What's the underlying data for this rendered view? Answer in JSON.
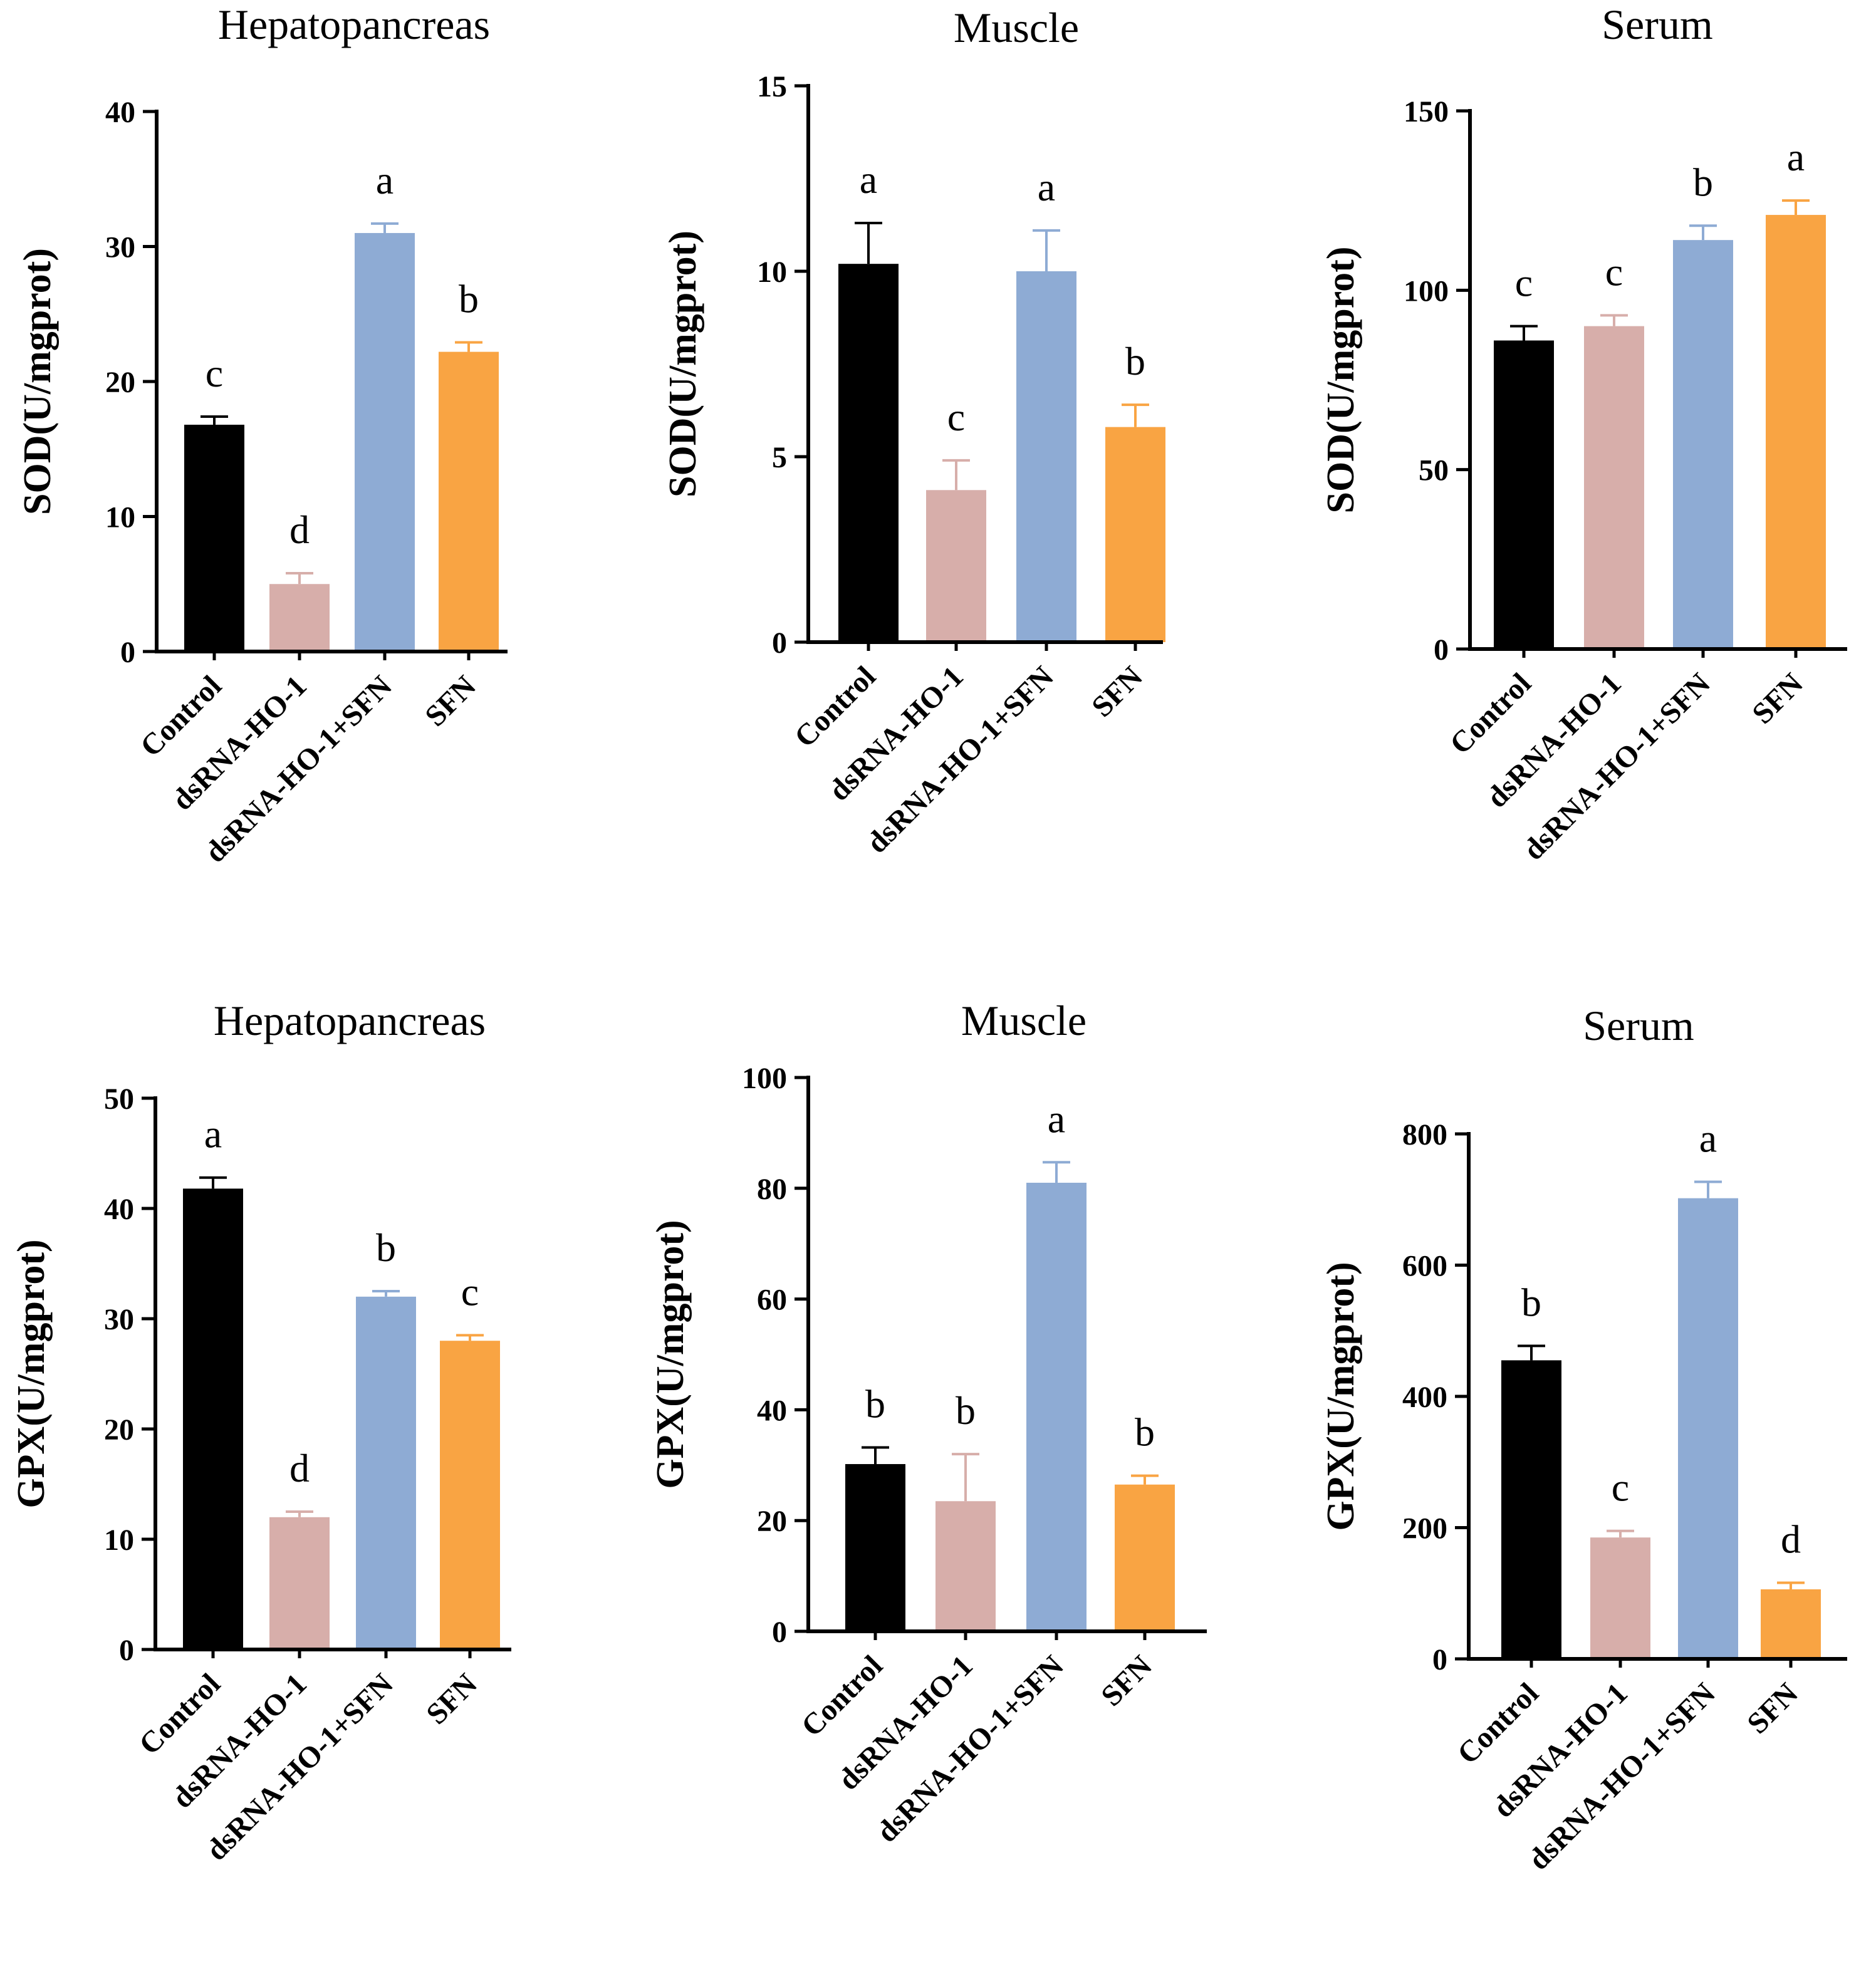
{
  "colors": {
    "Control": "#000000",
    "dsRNA-HO-1": "#d7aeaa",
    "dsRNA-HO-1+SFN": "#8eabd4",
    "SFN": "#f9a443"
  },
  "chart_data": [
    {
      "type": "bar",
      "title": "Hepatopancreas",
      "ylabel": "SOD(U/mgprot)",
      "categories": [
        "Control",
        "dsRNA-HO-1",
        "dsRNA-HO-1+SFN",
        "SFN"
      ],
      "values": [
        16.8,
        5.0,
        31.0,
        22.2
      ],
      "errors": [
        0.6,
        0.8,
        0.7,
        0.7
      ],
      "significance": [
        "c",
        "d",
        "a",
        "b"
      ],
      "ylim": [
        0,
        40
      ],
      "yticks": [
        0,
        10,
        20,
        30,
        40
      ]
    },
    {
      "type": "bar",
      "title": "Muscle",
      "ylabel": "SOD(U/mgprot)",
      "categories": [
        "Control",
        "dsRNA-HO-1",
        "dsRNA-HO-1+SFN",
        "SFN"
      ],
      "values": [
        10.2,
        4.1,
        10.0,
        5.8
      ],
      "errors": [
        1.1,
        0.8,
        1.1,
        0.6
      ],
      "significance": [
        "a",
        "c",
        "a",
        "b"
      ],
      "ylim": [
        0,
        15
      ],
      "yticks": [
        0,
        5,
        10,
        15
      ]
    },
    {
      "type": "bar",
      "title": "Serum",
      "ylabel": "SOD(U/mgprot)",
      "categories": [
        "Control",
        "dsRNA-HO-1",
        "dsRNA-HO-1+SFN",
        "SFN"
      ],
      "values": [
        86,
        90,
        114,
        121
      ],
      "errors": [
        4,
        3,
        4,
        4
      ],
      "significance": [
        "c",
        "c",
        "b",
        "a"
      ],
      "ylim": [
        0,
        150
      ],
      "yticks": [
        0,
        50,
        100,
        150
      ]
    },
    {
      "type": "bar",
      "title": "Hepatopancreas",
      "ylabel": "GPX(U/mgprot)",
      "categories": [
        "Control",
        "dsRNA-HO-1",
        "dsRNA-HO-1+SFN",
        "SFN"
      ],
      "values": [
        41.8,
        12.0,
        32.0,
        28.0
      ],
      "errors": [
        1.0,
        0.5,
        0.5,
        0.5
      ],
      "significance": [
        "a",
        "d",
        "b",
        "c"
      ],
      "ylim": [
        0,
        50
      ],
      "yticks": [
        0,
        10,
        20,
        30,
        40,
        50
      ]
    },
    {
      "type": "bar",
      "title": "Muscle",
      "ylabel": "GPX(U/mgprot)",
      "categories": [
        "Control",
        "dsRNA-HO-1",
        "dsRNA-HO-1+SFN",
        "SFN"
      ],
      "values": [
        30.2,
        23.5,
        81.0,
        26.5
      ],
      "errors": [
        3.0,
        8.5,
        3.7,
        1.6
      ],
      "significance": [
        "b",
        "b",
        "a",
        "b"
      ],
      "ylim": [
        0,
        100
      ],
      "yticks": [
        0,
        20,
        40,
        60,
        80,
        100
      ]
    },
    {
      "type": "bar",
      "title": "Serum",
      "ylabel": "GPX(U/mgprot)",
      "categories": [
        "Control",
        "dsRNA-HO-1",
        "dsRNA-HO-1+SFN",
        "SFN"
      ],
      "values": [
        455,
        185,
        702,
        106
      ],
      "errors": [
        22,
        10,
        25,
        10
      ],
      "significance": [
        "b",
        "c",
        "a",
        "d"
      ],
      "ylim": [
        0,
        800
      ],
      "yticks": [
        0,
        200,
        400,
        600,
        800
      ]
    }
  ]
}
